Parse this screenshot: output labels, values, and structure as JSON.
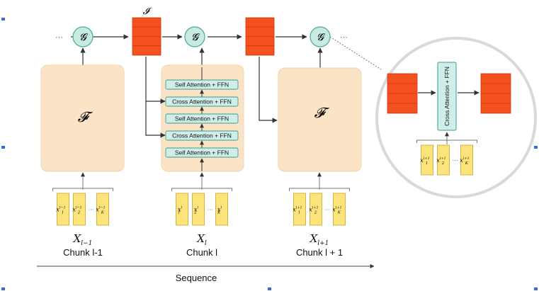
{
  "colors": {
    "module_fill": "#fbe4c5",
    "module_stroke": "#e9c79a",
    "memory_fill": "#f4511e",
    "memory_stroke": "#c63d10",
    "g_fill": "#c7ebe2",
    "g_stroke": "#49a98f",
    "layer_fill": "#cfeeea",
    "layer_stroke": "#3e9a8d",
    "token_fill": "#fde47a",
    "token_stroke": "#c5a62e",
    "arrow": "#333333",
    "handle": "#2f6de0"
  },
  "labels": {
    "memory_symbol": "𝓘",
    "g_symbol": "𝓖",
    "f_symbol": "𝓕",
    "ellipsis": "···",
    "sequence": "Sequence",
    "self_attention": "Self Attention + FFN",
    "cross_attention": "Cross Attention + FFN"
  },
  "chunks": [
    {
      "name": "Chunk l-1",
      "x_main": "X",
      "x_sub": "l−1",
      "tokens": [
        {
          "base": "x",
          "sub": "1",
          "sup": "l−1"
        },
        {
          "base": "x",
          "sub": "2",
          "sup": "l−1"
        },
        {
          "base": "x",
          "sub": "K",
          "sup": "l−1"
        }
      ]
    },
    {
      "name": "Chunk l",
      "x_main": "X",
      "x_sub": "l",
      "tokens": [
        {
          "base": "x",
          "sub": "1",
          "sup": "l"
        },
        {
          "base": "x",
          "sub": "2",
          "sup": "l"
        },
        {
          "base": "x",
          "sub": "K",
          "sup": "l"
        }
      ]
    },
    {
      "name": "Chunk l + 1",
      "x_main": "X",
      "x_sub": "l+1",
      "tokens": [
        {
          "base": "x",
          "sub": "1",
          "sup": "l+1"
        },
        {
          "base": "x",
          "sub": "2",
          "sup": "l+1"
        },
        {
          "base": "x",
          "sub": "K",
          "sup": "l+1"
        }
      ]
    }
  ],
  "zoom_tokens": [
    {
      "base": "x",
      "sub": "1",
      "sup": "l+1"
    },
    {
      "base": "x",
      "sub": "2",
      "sup": "l+1"
    },
    {
      "base": "x",
      "sub": "K",
      "sup": "l+1"
    }
  ]
}
